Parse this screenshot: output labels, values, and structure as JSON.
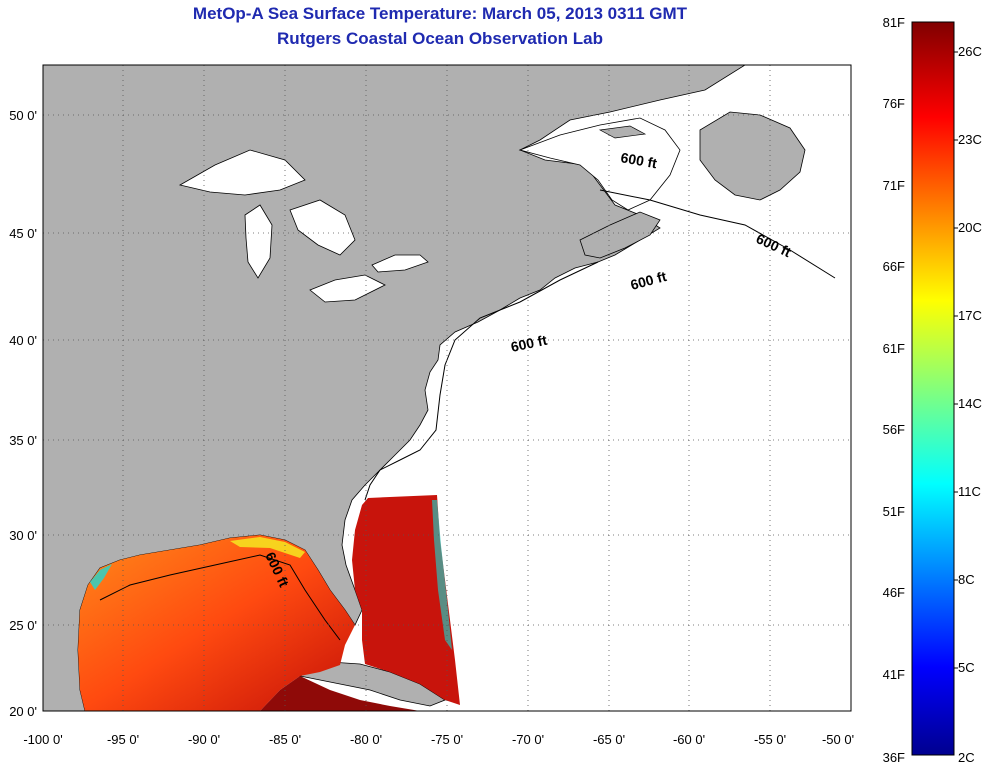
{
  "title": "MetOp-A Sea Surface Temperature:  March 05, 2013 0311 GMT",
  "subtitle": "Rutgers Coastal Ocean Observation Lab",
  "lat_ticks": [
    "50 0'",
    "45 0'",
    "40 0'",
    "35 0'",
    "30 0'",
    "25 0'",
    "20 0'"
  ],
  "lon_ticks": [
    "-100 0'",
    "-95 0'",
    "-90 0'",
    "-85 0'",
    "-80 0'",
    "-75 0'",
    "-70 0'",
    "-65 0'",
    "-60 0'",
    "-55 0'",
    "-50 0'"
  ],
  "contour_label": "600 ft",
  "colorbar": {
    "fahrenheit": [
      "81F",
      "76F",
      "71F",
      "66F",
      "61F",
      "56F",
      "51F",
      "46F",
      "41F",
      "36F"
    ],
    "celsius": [
      "26C",
      "23C",
      "20C",
      "17C",
      "14C",
      "11C",
      "8C",
      "5C",
      "2C"
    ]
  },
  "colors": {
    "land": "#b0b0b0",
    "ocean": "#ffffff",
    "title": "#1f2ab0"
  }
}
